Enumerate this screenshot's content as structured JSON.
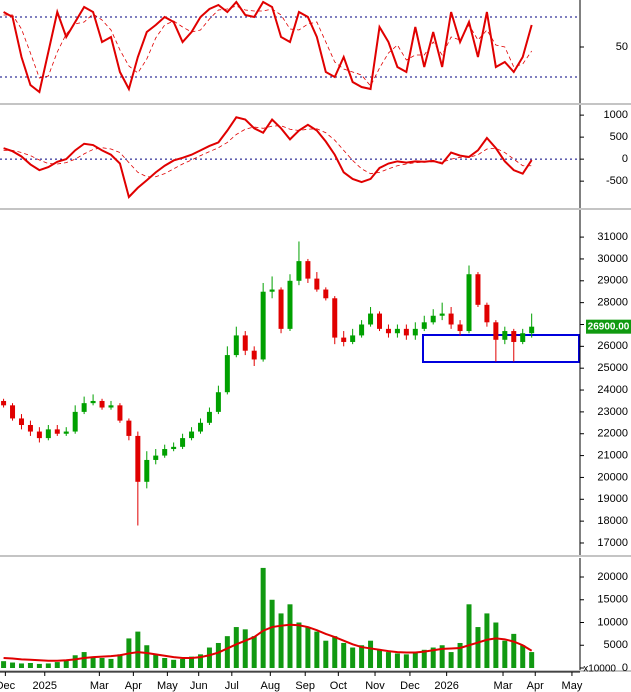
{
  "chart_data": [
    {
      "type": "line",
      "ylim": [
        -6,
        97
      ],
      "yticks": [
        50
      ],
      "ref_lines": [
        20,
        80
      ],
      "series": [
        {
          "color": "#e00000",
          "width": 2,
          "values": [
            85,
            80,
            40,
            12,
            5,
            45,
            85,
            60,
            75,
            90,
            85,
            55,
            60,
            25,
            8,
            40,
            65,
            72,
            80,
            75,
            55,
            65,
            80,
            88,
            92,
            85,
            95,
            82,
            80,
            95,
            90,
            60,
            55,
            85,
            80,
            60,
            25,
            20,
            40,
            15,
            10,
            8,
            70,
            55,
            30,
            25,
            70,
            30,
            65,
            30,
            85,
            55,
            75,
            40,
            85,
            30,
            35,
            25,
            40,
            72
          ]
        },
        {
          "color": "#e00000",
          "width": 0.8,
          "dash": true,
          "values": [
            82,
            82,
            68,
            44,
            19,
            21,
            45,
            63,
            73,
            75,
            83,
            77,
            67,
            47,
            31,
            24,
            38,
            59,
            72,
            76,
            70,
            65,
            67,
            78,
            87,
            88,
            91,
            87,
            86,
            86,
            88,
            82,
            68,
            67,
            73,
            75,
            55,
            35,
            28,
            25,
            22,
            11,
            29,
            44,
            52,
            37,
            42,
            42,
            55,
            42,
            60,
            57,
            72,
            57,
            67,
            52,
            50,
            30,
            33,
            46
          ]
        }
      ]
    },
    {
      "type": "line",
      "ylim": [
        -1110,
        1230
      ],
      "yticks": [
        -500,
        0,
        500,
        1000
      ],
      "ref_lines": [
        0
      ],
      "series": [
        {
          "color": "#e00000",
          "width": 2,
          "values": [
            250,
            180,
            60,
            -120,
            -250,
            -180,
            -60,
            0,
            200,
            350,
            320,
            200,
            100,
            -100,
            -860,
            -650,
            -480,
            -300,
            -150,
            -30,
            30,
            100,
            200,
            300,
            380,
            650,
            950,
            900,
            700,
            600,
            900,
            700,
            450,
            650,
            780,
            650,
            400,
            100,
            -300,
            -450,
            -520,
            -450,
            -200,
            -100,
            -50,
            -80,
            -50,
            -60,
            -40,
            -100,
            150,
            80,
            50,
            200,
            480,
            250,
            -50,
            -250,
            -330,
            -20
          ]
        },
        {
          "color": "#e00000",
          "width": 0.8,
          "dash": true,
          "values": [
            200,
            200,
            150,
            80,
            -20,
            -100,
            -110,
            -80,
            0,
            120,
            220,
            260,
            230,
            150,
            -80,
            -300,
            -400,
            -400,
            -330,
            -220,
            -110,
            -20,
            80,
            170,
            260,
            380,
            560,
            680,
            730,
            700,
            750,
            760,
            680,
            650,
            680,
            690,
            600,
            430,
            200,
            -30,
            -220,
            -330,
            -300,
            -220,
            -150,
            -110,
            -80,
            -70,
            -60,
            -70,
            0,
            40,
            40,
            100,
            230,
            250,
            150,
            0,
            -150,
            -150
          ]
        }
      ]
    },
    {
      "type": "candlestick",
      "up_color": "#00a000",
      "down_color": "#e00000",
      "ylim": [
        16450,
        32240
      ],
      "yticks": [
        17000,
        18000,
        19000,
        20000,
        21000,
        22000,
        23000,
        24000,
        25000,
        26000,
        27000,
        28000,
        29000,
        30000,
        31000
      ],
      "last_value": {
        "value": 26900,
        "label": "26900.00"
      },
      "last_value_color": "#109a10",
      "open": [
        23500,
        23300,
        22700,
        22400,
        22100,
        21800,
        22200,
        22000,
        22100,
        23000,
        23400,
        23500,
        23200,
        23300,
        22600,
        21900,
        19800,
        20800,
        21000,
        21300,
        21400,
        21800,
        22100,
        22500,
        23000,
        23900,
        25600,
        26500,
        25800,
        25400,
        28500,
        28600,
        26800,
        29000,
        29900,
        29100,
        28600,
        28200,
        26400,
        26200,
        26500,
        27000,
        27500,
        26800,
        26600,
        26800,
        26500,
        26800,
        27100,
        27400,
        27500,
        27000,
        26700,
        29300,
        27900,
        27100,
        26300,
        26700,
        26200,
        26600
      ],
      "high": [
        23600,
        23400,
        22900,
        22600,
        22300,
        22400,
        22400,
        22300,
        23300,
        23700,
        23800,
        23600,
        23500,
        23400,
        22700,
        22100,
        21200,
        21300,
        21500,
        21600,
        22000,
        22300,
        22700,
        23200,
        24200,
        26000,
        26900,
        26700,
        26000,
        28900,
        29200,
        28700,
        29300,
        30800,
        30000,
        29400,
        28700,
        28300,
        26700,
        26800,
        27200,
        27800,
        27600,
        27000,
        27000,
        27000,
        27100,
        27400,
        27700,
        28000,
        27800,
        27200,
        29700,
        29400,
        28000,
        27200,
        26900,
        26800,
        26800,
        27500
      ],
      "low": [
        23200,
        22600,
        22200,
        21900,
        21600,
        21700,
        21900,
        21900,
        22000,
        22900,
        23300,
        23100,
        23100,
        22500,
        21700,
        17800,
        19500,
        20600,
        20900,
        21200,
        21300,
        21700,
        22000,
        22400,
        22900,
        23800,
        25500,
        25600,
        25100,
        25300,
        28200,
        26600,
        26700,
        28800,
        28900,
        28500,
        28100,
        26100,
        26000,
        26100,
        26400,
        26900,
        26700,
        26400,
        26400,
        26300,
        26300,
        26700,
        27000,
        27200,
        26800,
        26500,
        26600,
        27800,
        26900,
        25300,
        26100,
        25300,
        26100,
        26400
      ],
      "close": [
        23300,
        22700,
        22400,
        22100,
        21800,
        22200,
        22000,
        22100,
        23000,
        23400,
        23500,
        23200,
        23300,
        22600,
        21900,
        19800,
        20800,
        21000,
        21300,
        21400,
        21800,
        22100,
        22500,
        23000,
        23900,
        25600,
        26500,
        25800,
        25400,
        28500,
        28600,
        26800,
        29000,
        29900,
        29100,
        28600,
        28200,
        26400,
        26200,
        26500,
        27000,
        27500,
        26800,
        26600,
        26800,
        26500,
        26800,
        27100,
        27400,
        27500,
        27000,
        26700,
        29300,
        27900,
        27100,
        26300,
        26700,
        26200,
        26600,
        26900
      ]
    },
    {
      "type": "volume",
      "color": "#119911",
      "ylim": [
        -440,
        24180
      ],
      "yticks": [
        0,
        5000,
        10000,
        15000,
        20000
      ],
      "y_unit_label": "x10000",
      "values": [
        1500,
        1200,
        1000,
        1100,
        900,
        1000,
        1300,
        1600,
        2800,
        3500,
        2500,
        2200,
        2000,
        3000,
        6500,
        8000,
        5000,
        3000,
        2200,
        1800,
        2000,
        2500,
        3000,
        4500,
        5500,
        7000,
        9000,
        8500,
        7000,
        22000,
        15000,
        12000,
        14000,
        10000,
        9000,
        8000,
        6000,
        7000,
        5500,
        4500,
        5000,
        6000,
        4000,
        3500,
        3200,
        3000,
        3500,
        4000,
        4500,
        5000,
        3500,
        5500,
        14000,
        9000,
        12000,
        10000,
        6000,
        7500,
        5000,
        3500
      ],
      "series": [
        {
          "color": "#e00000",
          "width": 2,
          "values": [
            2200,
            2100,
            1900,
            1800,
            1700,
            1600,
            1600,
            1700,
            1900,
            2200,
            2400,
            2500,
            2600,
            2800,
            3200,
            3500,
            3300,
            3000,
            2700,
            2400,
            2200,
            2200,
            2400,
            2800,
            3400,
            4300,
            5200,
            6000,
            6800,
            8200,
            9000,
            9300,
            9500,
            9400,
            9000,
            8300,
            7500,
            6800,
            6000,
            5200,
            4600,
            4300,
            4000,
            3700,
            3500,
            3400,
            3400,
            3600,
            3900,
            4200,
            4300,
            4400,
            5000,
            5600,
            6200,
            6500,
            6300,
            5800,
            5000,
            3800
          ]
        }
      ],
      "xlim": [
        -0.4,
        64.4
      ],
      "xticks": [
        {
          "value": 0.2,
          "label": "Dec"
        },
        {
          "value": 4.6,
          "label": "2025"
        },
        {
          "value": 10.7,
          "label": "Mar"
        },
        {
          "value": 14.5,
          "label": "Apr"
        },
        {
          "value": 18.3,
          "label": "May"
        },
        {
          "value": 21.8,
          "label": "Jun"
        },
        {
          "value": 25.5,
          "label": "Jul"
        },
        {
          "value": 29.8,
          "label": "Aug"
        },
        {
          "value": 33.7,
          "label": "Sep"
        },
        {
          "value": 37.4,
          "label": "Oct"
        },
        {
          "value": 41.5,
          "label": "Nov"
        },
        {
          "value": 45.4,
          "label": "Dec"
        },
        {
          "value": 49.5,
          "label": "2026"
        },
        {
          "value": 55.8,
          "label": "Mar"
        },
        {
          "value": 59.4,
          "label": "Apr"
        },
        {
          "value": 63.5,
          "label": "May"
        }
      ]
    }
  ]
}
